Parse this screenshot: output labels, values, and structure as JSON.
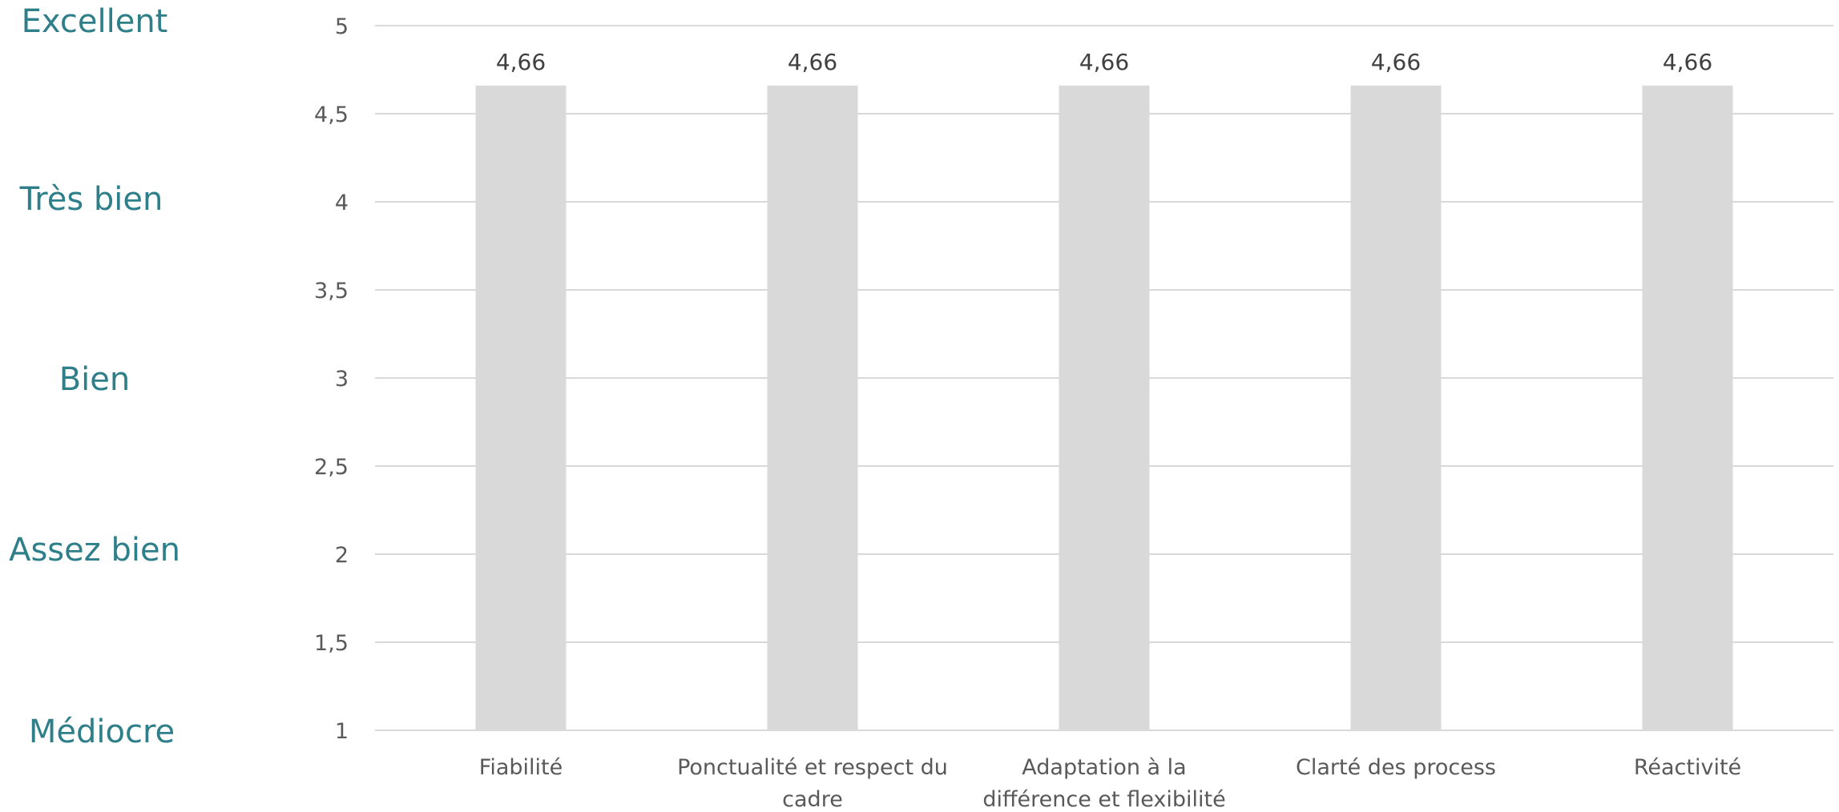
{
  "rating_scale": [
    "Excellent",
    "Très bien",
    "Bien",
    "Assez bien",
    "Médiocre"
  ],
  "chart_data": {
    "type": "bar",
    "categories": [
      "Fiabilité",
      "Ponctualité et respect du cadre",
      "Adaptation à la différence et flexibilité",
      "Clarté des process",
      "Réactivité"
    ],
    "category_lines": [
      [
        "Fiabilité"
      ],
      [
        "Ponctualité et respect du",
        "cadre"
      ],
      [
        "Adaptation à la",
        "différence et flexibilité"
      ],
      [
        "Clarté des process"
      ],
      [
        "Réactivité"
      ]
    ],
    "values": [
      4.66,
      4.66,
      4.66,
      4.66,
      4.66
    ],
    "value_labels": [
      "4,66",
      "4,66",
      "4,66",
      "4,66",
      "4,66"
    ],
    "yticks": [
      1,
      1.5,
      2,
      2.5,
      3,
      3.5,
      4,
      4.5,
      5
    ],
    "ytick_labels": [
      "1",
      "1,5",
      "2",
      "2,5",
      "3",
      "3,5",
      "4",
      "4,5",
      "5"
    ],
    "ylim": [
      1,
      5
    ],
    "grid": true,
    "legend": "none",
    "title": "",
    "xlabel": "",
    "ylabel": "",
    "colors": {
      "bar": "#d9d9d9",
      "grid": "#d9d9d9",
      "tick_text": "#595959",
      "rating_text": "#2e7f8a"
    }
  }
}
